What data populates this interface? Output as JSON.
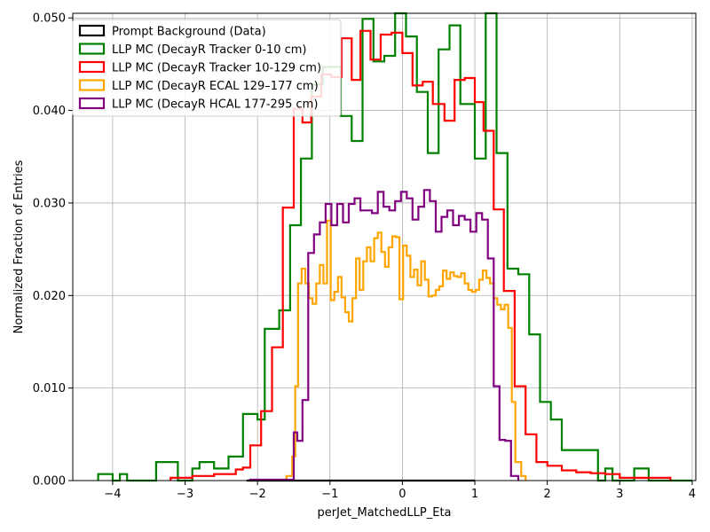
{
  "chart_data": {
    "type": "step-histogram",
    "xlabel": "perJet_MatchedLLP_Eta",
    "ylabel": "Normalized Fraction of Entries",
    "xlim": [
      -4.55,
      4.05
    ],
    "ylim": [
      0,
      0.0505
    ],
    "x_ticks": [
      -4,
      -3,
      -2,
      -1,
      0,
      1,
      2,
      3,
      4
    ],
    "x_tick_labels": [
      "−4",
      "−3",
      "−2",
      "−1",
      "0",
      "1",
      "2",
      "3",
      "4"
    ],
    "y_ticks": [
      0,
      0.01,
      0.02,
      0.03,
      0.04,
      0.05
    ],
    "y_tick_labels": [
      "0.000",
      "0.010",
      "0.020",
      "0.030",
      "0.040",
      "0.050"
    ],
    "grid": true,
    "legend_position": "top-left",
    "series": [
      {
        "name": "Prompt Background (Data)",
        "color": "#000000",
        "edges": [
          -2.15,
          1.0
        ],
        "values": [
          0
        ]
      },
      {
        "name": "LLP MC (DecayR Tracker 0-10 cm)",
        "color": "#008000",
        "edges": [
          -4.2,
          -4.0,
          -3.9,
          -3.8,
          -3.6,
          -3.4,
          -3.1,
          -2.9,
          -2.8,
          -2.6,
          -2.4,
          -2.2,
          -2.0,
          -1.9,
          -1.7,
          -1.55,
          -1.4,
          -1.25,
          -1.1,
          -0.85,
          -0.7,
          -0.55,
          -0.4,
          -0.25,
          -0.1,
          0.05,
          0.2,
          0.35,
          0.5,
          0.65,
          0.8,
          1.0,
          1.15,
          1.3,
          1.45,
          1.6,
          1.75,
          1.9,
          2.05,
          2.2,
          2.7,
          2.8,
          2.9,
          3.1,
          3.2,
          3.4,
          3.6,
          3.8,
          4.0
        ],
        "values": [
          0.0007,
          0,
          0.0007,
          0,
          0,
          0.002,
          0,
          0.0013,
          0.002,
          0.0013,
          0.0026,
          0.0072,
          0.0066,
          0.0164,
          0.0184,
          0.0276,
          0.0348,
          0.0428,
          0.0447,
          0.0394,
          0.0367,
          0.0499,
          0.0453,
          0.0459,
          0.0505,
          0.048,
          0.042,
          0.0354,
          0.0466,
          0.0492,
          0.0407,
          0.0348,
          0.0505,
          0.0354,
          0.0229,
          0.0223,
          0.0158,
          0.0085,
          0.0066,
          0.0033,
          0,
          0.0013,
          0,
          0,
          0.0013,
          0,
          0,
          0
        ]
      },
      {
        "name": "LLP MC (DecayR Tracker 10-129 cm)",
        "color": "#ff0000",
        "edges": [
          -3.2,
          -2.9,
          -2.6,
          -2.3,
          -2.2,
          -2.1,
          -1.95,
          -1.8,
          -1.65,
          -1.5,
          -1.38,
          -1.26,
          -1.12,
          -0.98,
          -0.84,
          -0.7,
          -0.58,
          -0.44,
          -0.3,
          -0.15,
          0,
          0.14,
          0.28,
          0.42,
          0.58,
          0.72,
          0.86,
          1.0,
          1.12,
          1.26,
          1.4,
          1.55,
          1.7,
          1.85,
          2.0,
          2.2,
          2.4,
          2.6,
          2.8,
          3.0,
          3.7
        ],
        "values": [
          0.0003,
          0.0005,
          0.0007,
          0.0012,
          0.0014,
          0.0038,
          0.0075,
          0.0144,
          0.0295,
          0.0402,
          0.0387,
          0.0415,
          0.0439,
          0.0436,
          0.0478,
          0.0433,
          0.0486,
          0.0455,
          0.0482,
          0.0484,
          0.0462,
          0.0427,
          0.0431,
          0.0407,
          0.0389,
          0.0433,
          0.0435,
          0.0409,
          0.0378,
          0.0293,
          0.0205,
          0.0102,
          0.005,
          0.002,
          0.0016,
          0.0011,
          0.0009,
          0.0008,
          0.0007,
          0.0003
        ]
      },
      {
        "name": "LLP MC (DecayR ECAL 129–177 cm)",
        "color": "#ffa500",
        "edges": [
          -1.6,
          -1.52,
          -1.48,
          -1.44,
          -1.39,
          -1.34,
          -1.29,
          -1.24,
          -1.19,
          -1.14,
          -1.09,
          -1.04,
          -0.99,
          -0.94,
          -0.89,
          -0.84,
          -0.79,
          -0.74,
          -0.69,
          -0.64,
          -0.59,
          -0.54,
          -0.49,
          -0.44,
          -0.39,
          -0.34,
          -0.29,
          -0.24,
          -0.19,
          -0.14,
          -0.09,
          -0.04,
          0.01,
          0.06,
          0.11,
          0.16,
          0.21,
          0.26,
          0.31,
          0.36,
          0.41,
          0.46,
          0.51,
          0.56,
          0.61,
          0.66,
          0.71,
          0.76,
          0.81,
          0.86,
          0.91,
          0.96,
          1.01,
          1.06,
          1.11,
          1.16,
          1.21,
          1.26,
          1.31,
          1.36,
          1.41,
          1.46,
          1.51,
          1.56,
          1.64,
          1.7
        ],
        "values": [
          0.0005,
          0.0026,
          0.0102,
          0.0213,
          0.0229,
          0.0213,
          0.0197,
          0.0191,
          0.0213,
          0.0233,
          0.0213,
          0.0281,
          0.0195,
          0.0204,
          0.022,
          0.0198,
          0.0182,
          0.0172,
          0.0197,
          0.024,
          0.0206,
          0.0237,
          0.0252,
          0.0237,
          0.0262,
          0.0268,
          0.0247,
          0.0231,
          0.0252,
          0.0264,
          0.0263,
          0.0196,
          0.0254,
          0.0243,
          0.022,
          0.0228,
          0.0211,
          0.0237,
          0.0217,
          0.0199,
          0.02,
          0.0206,
          0.021,
          0.0227,
          0.0218,
          0.0225,
          0.0221,
          0.022,
          0.0224,
          0.0213,
          0.0206,
          0.0204,
          0.0206,
          0.0217,
          0.0227,
          0.0219,
          0.0213,
          0.0197,
          0.019,
          0.0185,
          0.019,
          0.0165,
          0.0085,
          0.002,
          0.0005
        ]
      },
      {
        "name": "LLP MC (DecayR HCAL 177-295 cm)",
        "color": "#800080",
        "edges": [
          -2.1,
          -1.5,
          -1.45,
          -1.38,
          -1.3,
          -1.22,
          -1.14,
          -1.06,
          -0.98,
          -0.9,
          -0.82,
          -0.74,
          -0.66,
          -0.58,
          -0.5,
          -0.42,
          -0.34,
          -0.26,
          -0.18,
          -0.1,
          -0.02,
          0.06,
          0.14,
          0.22,
          0.3,
          0.38,
          0.46,
          0.54,
          0.62,
          0.7,
          0.78,
          0.86,
          0.94,
          1.02,
          1.1,
          1.18,
          1.26,
          1.34,
          1.42,
          1.5,
          1.6
        ],
        "values": [
          0.0001,
          0.0052,
          0.0043,
          0.0087,
          0.0246,
          0.0266,
          0.0279,
          0.0299,
          0.0276,
          0.0299,
          0.0279,
          0.0299,
          0.0305,
          0.0292,
          0.0292,
          0.0289,
          0.0312,
          0.0296,
          0.0292,
          0.0302,
          0.0312,
          0.0305,
          0.0282,
          0.0296,
          0.0314,
          0.0302,
          0.0269,
          0.0285,
          0.0292,
          0.0276,
          0.0286,
          0.0282,
          0.0269,
          0.0289,
          0.0282,
          0.024,
          0.0102,
          0.0044,
          0.0043,
          0.0005
        ]
      }
    ]
  }
}
